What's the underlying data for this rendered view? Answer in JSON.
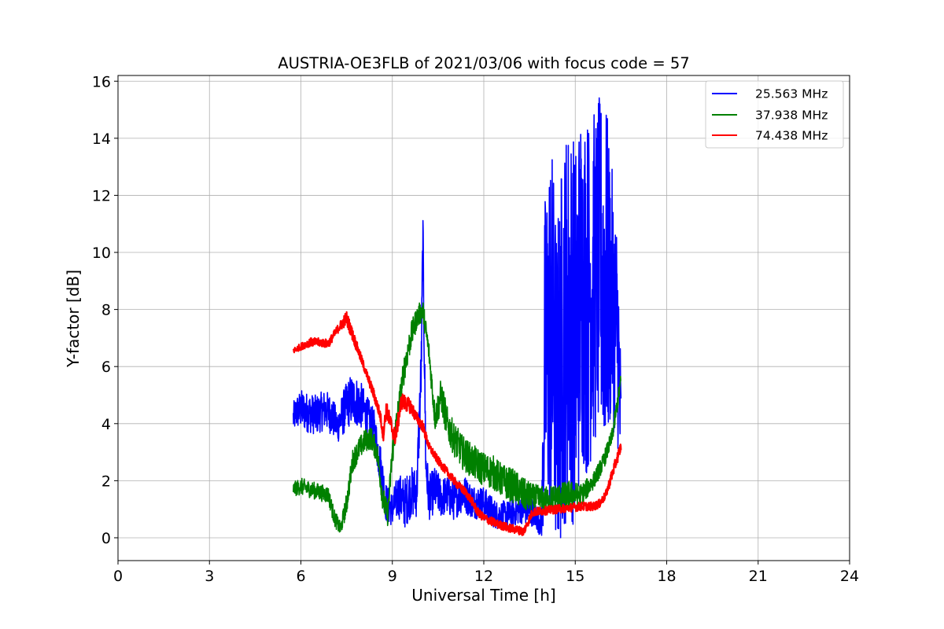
{
  "chart_data": {
    "type": "line",
    "title": "AUSTRIA-OE3FLB of 2021/03/06 with focus code = 57",
    "xlabel": "Universal Time [h]",
    "ylabel": "Y-factor [dB]",
    "xlim": [
      0,
      24
    ],
    "ylim": [
      -0.8,
      16.2
    ],
    "xticks": [
      0,
      3,
      6,
      9,
      12,
      15,
      18,
      21,
      24
    ],
    "yticks": [
      0,
      2,
      4,
      6,
      8,
      10,
      12,
      14,
      16
    ],
    "grid": true,
    "legend_position": "top-right",
    "series": [
      {
        "name": "25.563 MHz",
        "color": "#0000ff",
        "x": [
          5.75,
          5.85,
          6.0,
          6.2,
          6.5,
          6.8,
          7.0,
          7.2,
          7.4,
          7.6,
          7.8,
          8.0,
          8.2,
          8.4,
          8.6,
          8.8,
          9.0,
          9.2,
          9.4,
          9.6,
          9.8,
          9.95,
          10.0,
          10.1,
          10.2,
          10.4,
          10.6,
          10.8,
          11.0,
          11.3,
          11.6,
          12.0,
          12.4,
          12.8,
          13.2,
          13.6,
          13.9,
          14.0,
          14.2,
          14.4,
          14.6,
          14.8,
          15.0,
          15.2,
          15.4,
          15.6,
          15.8,
          16.0,
          16.2,
          16.4,
          16.5
        ],
        "y": [
          4.2,
          4.4,
          4.5,
          4.4,
          4.3,
          4.5,
          4.3,
          3.9,
          4.4,
          4.8,
          4.8,
          4.6,
          4.2,
          3.8,
          2.6,
          1.2,
          1.0,
          1.5,
          1.2,
          1.6,
          1.6,
          6.0,
          10.5,
          2.5,
          1.4,
          1.7,
          1.4,
          1.5,
          1.3,
          1.6,
          1.3,
          1.2,
          0.8,
          0.8,
          1.0,
          0.9,
          0.5,
          6.0,
          7.5,
          5.0,
          7.0,
          8.0,
          7.0,
          9.0,
          8.5,
          9.0,
          9.5,
          9.0,
          8.5,
          7.0,
          3.5
        ],
        "amp": [
          0.55,
          0.6,
          0.7,
          0.7,
          0.7,
          0.7,
          0.7,
          0.6,
          0.8,
          0.9,
          0.9,
          0.8,
          0.7,
          0.7,
          0.8,
          0.7,
          0.6,
          0.8,
          0.9,
          0.9,
          0.9,
          1.2,
          1.2,
          0.9,
          0.8,
          0.8,
          0.7,
          0.7,
          0.7,
          0.7,
          0.6,
          0.6,
          0.5,
          0.5,
          0.5,
          0.5,
          0.5,
          6.0,
          7.0,
          6.0,
          7.0,
          7.0,
          7.0,
          6.5,
          6.5,
          6.0,
          6.0,
          6.5,
          4.5,
          4.0,
          2.5
        ]
      },
      {
        "name": "37.938 MHz",
        "color": "#008000",
        "x": [
          5.75,
          6.0,
          6.3,
          6.6,
          6.9,
          7.1,
          7.3,
          7.5,
          7.7,
          7.9,
          8.1,
          8.3,
          8.5,
          8.7,
          8.85,
          9.0,
          9.2,
          9.4,
          9.6,
          9.8,
          10.0,
          10.2,
          10.4,
          10.6,
          10.8,
          11.0,
          11.3,
          11.6,
          12.0,
          12.3,
          12.6,
          13.0,
          13.3,
          13.6,
          14.0,
          14.4,
          14.8,
          15.2,
          15.6,
          15.9,
          16.2,
          16.5
        ],
        "y": [
          1.7,
          1.8,
          1.7,
          1.6,
          1.5,
          0.7,
          0.3,
          1.2,
          2.7,
          3.1,
          3.4,
          3.5,
          3.0,
          1.3,
          0.8,
          3.0,
          4.5,
          6.0,
          7.0,
          7.7,
          8.0,
          6.5,
          4.2,
          5.0,
          4.0,
          3.5,
          3.0,
          2.7,
          2.4,
          2.3,
          2.0,
          1.8,
          1.5,
          1.4,
          1.3,
          1.4,
          1.5,
          1.5,
          2.0,
          2.6,
          3.5,
          5.5
        ],
        "amp": [
          0.25,
          0.3,
          0.3,
          0.3,
          0.3,
          0.3,
          0.25,
          0.4,
          0.4,
          0.4,
          0.4,
          0.4,
          0.4,
          0.5,
          0.4,
          0.5,
          0.5,
          0.5,
          0.5,
          0.4,
          0.4,
          0.4,
          0.5,
          0.6,
          0.6,
          0.6,
          0.6,
          0.6,
          0.6,
          0.6,
          0.6,
          0.6,
          0.6,
          0.5,
          0.5,
          0.5,
          0.5,
          0.4,
          0.3,
          0.3,
          0.3,
          0.3
        ]
      },
      {
        "name": "74.438 MHz",
        "color": "#ff0000",
        "x": [
          5.75,
          6.0,
          6.3,
          6.6,
          6.9,
          7.2,
          7.5,
          7.8,
          8.1,
          8.4,
          8.6,
          8.7,
          8.8,
          9.0,
          9.1,
          9.3,
          9.6,
          9.8,
          10.0,
          10.2,
          10.5,
          10.8,
          11.1,
          11.4,
          11.6,
          11.8,
          12.0,
          12.4,
          12.8,
          13.2,
          13.3,
          13.6,
          14.0,
          14.4,
          14.8,
          15.2,
          15.6,
          15.8,
          16.0,
          16.2,
          16.5
        ],
        "y": [
          6.55,
          6.7,
          6.85,
          6.85,
          6.8,
          7.3,
          7.7,
          6.8,
          5.9,
          5.0,
          4.3,
          3.6,
          4.5,
          3.8,
          3.5,
          4.8,
          4.6,
          4.2,
          3.9,
          3.2,
          2.7,
          2.3,
          1.9,
          1.6,
          1.3,
          0.9,
          0.7,
          0.5,
          0.35,
          0.25,
          0.2,
          0.9,
          0.95,
          1.0,
          1.05,
          1.1,
          1.1,
          1.2,
          1.5,
          2.2,
          3.2
        ],
        "amp": [
          0.1,
          0.12,
          0.15,
          0.15,
          0.15,
          0.15,
          0.25,
          0.2,
          0.15,
          0.2,
          0.2,
          0.25,
          0.3,
          0.3,
          0.3,
          0.3,
          0.25,
          0.2,
          0.2,
          0.15,
          0.15,
          0.15,
          0.15,
          0.15,
          0.15,
          0.15,
          0.15,
          0.15,
          0.15,
          0.15,
          0.15,
          0.15,
          0.15,
          0.15,
          0.15,
          0.15,
          0.15,
          0.15,
          0.15,
          0.2,
          0.2
        ]
      }
    ]
  }
}
